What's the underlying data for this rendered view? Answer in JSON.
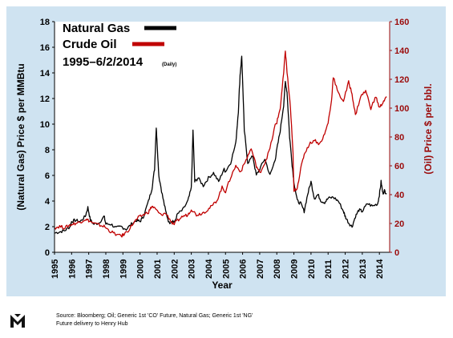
{
  "chart_data": {
    "type": "line",
    "title": "1995–6/2/2014",
    "title_note": "(Daily)",
    "xlabel": "Year",
    "ylabel": "(Natural Gas) Price $ per MMBtu",
    "y2label": "(Oil) Price $ per bbl.",
    "x_ticks": [
      "1995",
      "1996",
      "1997",
      "1998",
      "1999",
      "2000",
      "2001",
      "2002",
      "2003",
      "2004",
      "2005",
      "2006",
      "2007",
      "2008",
      "2009",
      "2010",
      "2011",
      "2012",
      "2013",
      "2014"
    ],
    "xlim": [
      1995,
      2014.6
    ],
    "ylim": [
      0,
      18
    ],
    "y_ticks": [
      0,
      2,
      4,
      6,
      8,
      10,
      12,
      14,
      16,
      18
    ],
    "y2lim": [
      0,
      160
    ],
    "y2_ticks": [
      0,
      20,
      40,
      60,
      80,
      100,
      120,
      140,
      160
    ],
    "grid": false,
    "legend_position": "top-left",
    "series": [
      {
        "name": "Natural Gas",
        "axis": "left",
        "color": "#000000",
        "x": [
          1995.0,
          1995.3,
          1995.6,
          1995.9,
          1996.0,
          1996.2,
          1996.5,
          1996.8,
          1996.95,
          1997.1,
          1997.3,
          1997.6,
          1997.9,
          1998.0,
          1998.3,
          1998.6,
          1998.9,
          1999.2,
          1999.5,
          1999.8,
          2000.0,
          2000.2,
          2000.5,
          2000.7,
          2000.85,
          2000.95,
          2001.0,
          2001.1,
          2001.3,
          2001.5,
          2001.7,
          2001.9,
          2002.0,
          2002.2,
          2002.5,
          2002.8,
          2003.0,
          2003.1,
          2003.2,
          2003.4,
          2003.7,
          2004.0,
          2004.3,
          2004.6,
          2004.9,
          2005.0,
          2005.3,
          2005.6,
          2005.75,
          2005.85,
          2005.95,
          2006.1,
          2006.3,
          2006.6,
          2006.8,
          2007.0,
          2007.3,
          2007.6,
          2007.9,
          2008.0,
          2008.2,
          2008.4,
          2008.5,
          2008.6,
          2008.75,
          2008.9,
          2009.0,
          2009.2,
          2009.4,
          2009.6,
          2009.8,
          2010.0,
          2010.2,
          2010.4,
          2010.6,
          2010.8,
          2011.0,
          2011.3,
          2011.6,
          2011.9,
          2012.0,
          2012.2,
          2012.4,
          2012.6,
          2012.8,
          2013.0,
          2013.3,
          2013.6,
          2013.9,
          2014.0,
          2014.1,
          2014.2,
          2014.3,
          2014.42
        ],
        "values": [
          1.5,
          1.6,
          1.7,
          2.0,
          2.4,
          2.5,
          2.4,
          2.8,
          3.5,
          2.5,
          2.2,
          2.3,
          2.8,
          2.2,
          2.2,
          1.9,
          2.0,
          1.8,
          2.2,
          2.5,
          2.4,
          2.8,
          4.0,
          5.0,
          6.5,
          9.8,
          8.5,
          6.0,
          4.5,
          3.2,
          2.3,
          2.5,
          2.3,
          3.0,
          3.3,
          4.0,
          5.0,
          9.5,
          5.5,
          5.8,
          5.2,
          5.8,
          6.2,
          5.5,
          6.5,
          6.3,
          7.0,
          8.5,
          11.0,
          13.8,
          15.3,
          9.5,
          7.0,
          7.5,
          6.0,
          6.5,
          7.3,
          6.0,
          7.2,
          8.0,
          9.5,
          11.5,
          13.3,
          12.5,
          9.0,
          6.8,
          5.5,
          4.0,
          3.8,
          3.2,
          4.5,
          5.5,
          4.2,
          4.5,
          4.0,
          3.9,
          4.2,
          4.3,
          4.0,
          3.2,
          2.8,
          2.3,
          2.0,
          2.8,
          3.3,
          3.2,
          3.8,
          3.6,
          3.8,
          4.5,
          5.5,
          4.6,
          4.8,
          4.6
        ]
      },
      {
        "name": "Crude Oil",
        "axis": "right",
        "color": "#c00000",
        "x": [
          1995.0,
          1995.3,
          1995.6,
          1995.9,
          1996.2,
          1996.5,
          1996.8,
          1997.0,
          1997.3,
          1997.6,
          1997.9,
          1998.2,
          1998.5,
          1998.9,
          1999.0,
          1999.3,
          1999.6,
          1999.9,
          2000.2,
          2000.5,
          2000.7,
          2000.9,
          2001.2,
          2001.5,
          2001.8,
          2001.95,
          2002.2,
          2002.5,
          2002.8,
          2003.0,
          2003.3,
          2003.6,
          2003.9,
          2004.2,
          2004.5,
          2004.8,
          2005.0,
          2005.3,
          2005.6,
          2005.9,
          2006.2,
          2006.5,
          2006.8,
          2007.0,
          2007.3,
          2007.6,
          2007.9,
          2008.0,
          2008.2,
          2008.4,
          2008.5,
          2008.6,
          2008.8,
          2008.95,
          2009.0,
          2009.2,
          2009.4,
          2009.6,
          2009.9,
          2010.2,
          2010.5,
          2010.8,
          2011.0,
          2011.2,
          2011.3,
          2011.6,
          2011.9,
          2012.2,
          2012.4,
          2012.6,
          2012.9,
          2013.2,
          2013.5,
          2013.8,
          2014.0,
          2014.2,
          2014.42
        ],
        "values": [
          17,
          18,
          17,
          19,
          20,
          21,
          23,
          22,
          20,
          19,
          18,
          15,
          13,
          11,
          12,
          15,
          20,
          24,
          26,
          28,
          32,
          30,
          26,
          27,
          22,
          19,
          22,
          25,
          26,
          30,
          26,
          27,
          29,
          32,
          36,
          45,
          42,
          52,
          60,
          56,
          64,
          72,
          60,
          55,
          62,
          72,
          88,
          90,
          100,
          124,
          140,
          125,
          100,
          68,
          42,
          45,
          58,
          68,
          75,
          78,
          75,
          82,
          90,
          105,
          122,
          110,
          105,
          118,
          110,
          95,
          108,
          112,
          100,
          108,
          100,
          104,
          108
        ]
      }
    ]
  },
  "legend": {
    "items": [
      "Natural Gas",
      "Crude Oil"
    ],
    "title": "1995–6/2/2014",
    "note": "(Daily)"
  },
  "footer": {
    "source": "Source: Bloomberg; Oil; Generic 1st 'CO' Future, Natural Gas; Generic 1st 'NG' Future delivery to Henry Hub"
  }
}
